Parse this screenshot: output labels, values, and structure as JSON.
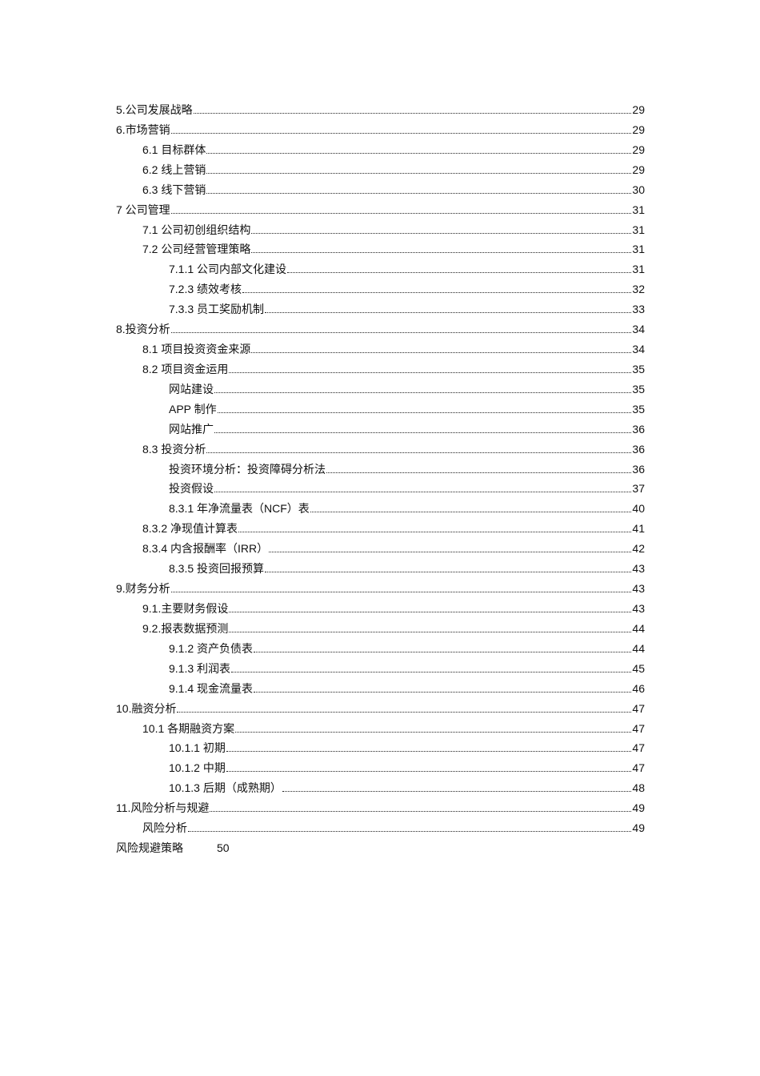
{
  "toc": [
    {
      "title": "5.公司发展战略",
      "page": "29",
      "level": 0
    },
    {
      "title": "6.市场营销",
      "page": "29",
      "level": 0
    },
    {
      "title": "6.1 目标群体",
      "page": "29",
      "level": 1
    },
    {
      "title": "6.2 线上营销",
      "page": "29",
      "level": 1
    },
    {
      "title": "6.3 线下营销",
      "page": "30",
      "level": 1
    },
    {
      "title": "7 公司管理",
      "page": "31",
      "level": 0
    },
    {
      "title": "7.1 公司初创组织结构",
      "page": "31",
      "level": 1
    },
    {
      "title": "7.2 公司经营管理策略",
      "page": "31",
      "level": 1
    },
    {
      "title": "7.1.1 公司内部文化建设",
      "page": "31",
      "level": 2
    },
    {
      "title": "7.2.3 绩效考核",
      "page": "32",
      "level": 2
    },
    {
      "title": "7.3.3 员工奖励机制",
      "page": "33",
      "level": 2
    },
    {
      "title": "8.投资分析",
      "page": "34",
      "level": 0
    },
    {
      "title": "8.1 项目投资资金来源",
      "page": "34",
      "level": 1
    },
    {
      "title": "8.2 项目资金运用",
      "page": "35",
      "level": 1
    },
    {
      "title": "网站建设",
      "page": "35",
      "level": 2
    },
    {
      "title": "APP 制作",
      "page": "35",
      "level": 2
    },
    {
      "title": "网站推广",
      "page": "36",
      "level": 2
    },
    {
      "title": "8.3 投资分析",
      "page": "36",
      "level": 1
    },
    {
      "title": "投资环境分析：投资障碍分析法",
      "page": "36",
      "level": 2
    },
    {
      "title": "投资假设",
      "page": "37",
      "level": 2
    },
    {
      "title": "8.3.1 年净流量表（NCF）表",
      "page": "40",
      "level": 2
    },
    {
      "title": "8.3.2 净现值计算表",
      "page": "41",
      "level": 1
    },
    {
      "title": "8.3.4 内含报酬率（IRR）",
      "page": "42",
      "level": 1
    },
    {
      "title": "8.3.5 投资回报预算",
      "page": "43",
      "level": 2
    },
    {
      "title": "9.财务分析",
      "page": "43",
      "level": 0
    },
    {
      "title": "9.1.主要财务假设",
      "page": "43",
      "level": 1
    },
    {
      "title": "9.2.报表数据预测",
      "page": "44",
      "level": 1
    },
    {
      "title": "9.1.2 资产负债表",
      "page": "44",
      "level": 2
    },
    {
      "title": "9.1.3 利润表",
      "page": "45",
      "level": 2
    },
    {
      "title": "9.1.4 现金流量表",
      "page": "46",
      "level": 2
    },
    {
      "title": "10.融资分析",
      "page": "47",
      "level": 0
    },
    {
      "title": "10.1 各期融资方案",
      "page": "47",
      "level": 1
    },
    {
      "title": "10.1.1 初期",
      "page": "47",
      "level": 2
    },
    {
      "title": "10.1.2 中期",
      "page": "47",
      "level": 2
    },
    {
      "title": "10.1.3 后期（成熟期）",
      "page": "48",
      "level": 2
    },
    {
      "title": "11.风险分析与规避",
      "page": "49",
      "level": 0
    },
    {
      "title": "风险分析",
      "page": "49",
      "level": 1
    },
    {
      "title": "风险规避策略",
      "page": "50",
      "level": 0,
      "no_leader": true
    }
  ]
}
